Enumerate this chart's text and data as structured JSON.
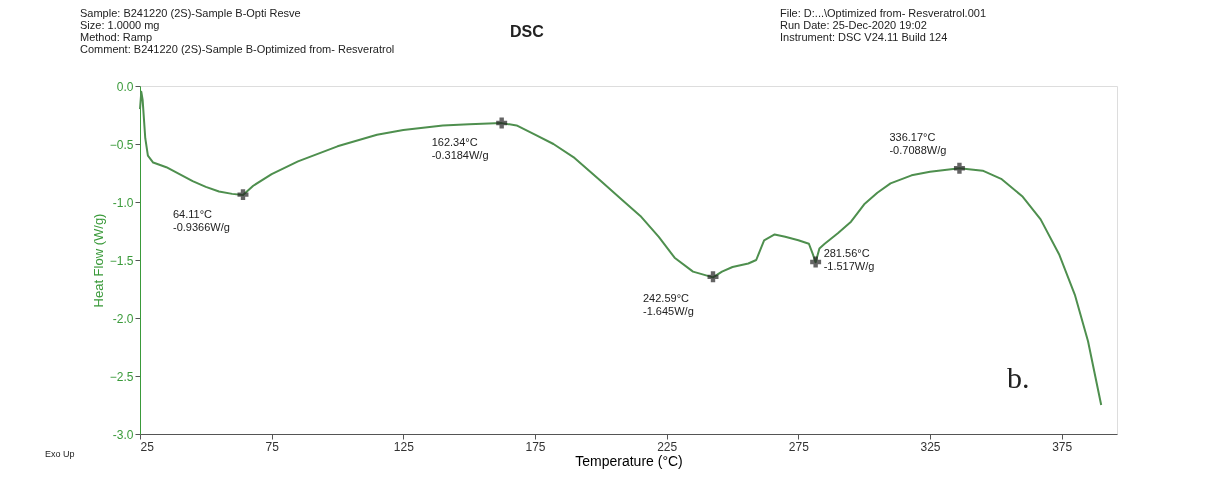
{
  "chart_data": {
    "type": "line",
    "title": "DSC",
    "xlabel": "Temperature (°C)",
    "ylabel": "Heat Flow (W/g)",
    "annotations": [
      "Sample: B241220 (2S)-Sample B-Opti Resve",
      "Size:  1.0000 mg",
      "Method: Ramp",
      "Comment: B241220 (2S)-Sample B-Optimized from- Resveratrol",
      "File: D:...\\Optimized from- Resveratrol.001",
      "Run Date: 25-Dec-2020 19:02",
      "Instrument: DSC V24.11 Build 124",
      "Exo Up",
      "b.",
      {
        "text": "64.11°C\n-0.9366W/g",
        "x": 64.11,
        "y": -0.9366
      },
      {
        "text": "162.34°C\n-0.3184W/g",
        "x": 162.34,
        "y": -0.3184
      },
      {
        "text": "242.59°C\n-1.645W/g",
        "x": 242.59,
        "y": -1.645
      },
      {
        "text": "281.56°C\n-1.517W/g",
        "x": 281.56,
        "y": -1.517
      },
      {
        "text": "336.17°C\n-0.7088W/g",
        "x": 336.17,
        "y": -0.7088
      }
    ],
    "x": [
      25,
      25.5,
      26,
      27,
      28,
      30,
      35,
      40,
      45,
      50,
      55,
      60,
      64.11,
      68,
      75,
      85,
      100,
      115,
      125,
      140,
      150,
      162.34,
      168,
      175,
      182,
      190,
      200,
      208,
      215,
      222,
      228,
      235,
      242.59,
      246,
      250,
      256,
      259,
      262,
      266,
      270,
      275,
      279,
      280.5,
      281.56,
      283,
      285,
      290,
      295,
      300,
      305,
      310,
      318,
      325,
      336.17,
      345,
      352,
      360,
      367,
      374,
      380,
      385,
      390
    ],
    "series": [
      {
        "color": "#4e8f4e",
        "values": [
          -0.2,
          -0.05,
          -0.12,
          -0.45,
          -0.6,
          -0.66,
          -0.7,
          -0.76,
          -0.82,
          -0.87,
          -0.91,
          -0.93,
          -0.94,
          -0.86,
          -0.76,
          -0.65,
          -0.52,
          -0.42,
          -0.38,
          -0.34,
          -0.33,
          -0.32,
          -0.34,
          -0.42,
          -0.5,
          -0.62,
          -0.82,
          -0.98,
          -1.12,
          -1.3,
          -1.48,
          -1.6,
          -1.65,
          -1.6,
          -1.56,
          -1.53,
          -1.5,
          -1.33,
          -1.28,
          -1.3,
          -1.33,
          -1.36,
          -1.45,
          -1.52,
          -1.4,
          -1.36,
          -1.27,
          -1.17,
          -1.02,
          -0.92,
          -0.84,
          -0.77,
          -0.74,
          -0.71,
          -0.73,
          -0.8,
          -0.95,
          -1.15,
          -1.45,
          -1.8,
          -2.2,
          -2.75
        ]
      }
    ],
    "xlim": [
      25,
      396
    ],
    "ylim": [
      -3.0,
      0.0
    ],
    "xticks": [
      25,
      75,
      125,
      175,
      225,
      275,
      325,
      375
    ],
    "yticks": [
      {
        "value": 0,
        "label": "0.0"
      },
      -0.5,
      {
        "value": -1,
        "label": "-1.0"
      },
      -1.5,
      {
        "value": -2,
        "label": "-2.0"
      },
      -2.5,
      {
        "value": -3,
        "label": "-3.0"
      }
    ],
    "grid": false,
    "marker": "none",
    "line_style": "solid"
  }
}
